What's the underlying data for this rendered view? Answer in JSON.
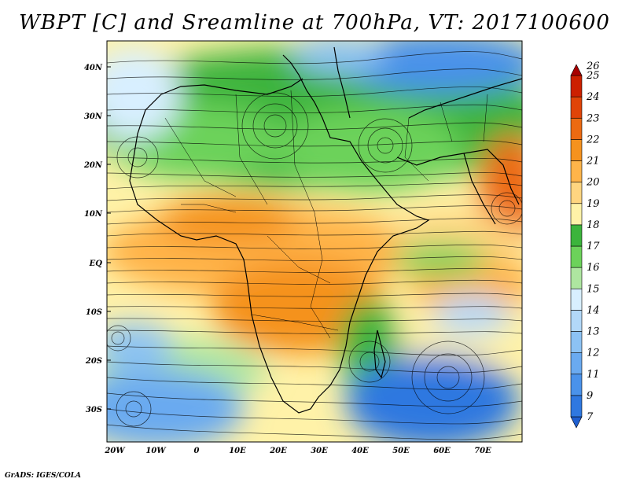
{
  "title": "WBPT [C] and Sreamline at 700hPa, VT: 2017100600",
  "credit": "GrADS: IGES/COLA",
  "lat_labels": [
    "40N",
    "30N",
    "20N",
    "10N",
    "EQ",
    "10S",
    "20S",
    "30S"
  ],
  "lon_labels": [
    "20W",
    "10W",
    "0",
    "10E",
    "20E",
    "30E",
    "40E",
    "50E",
    "60E",
    "70E"
  ],
  "colorbar": {
    "labels": [
      "7",
      "9",
      "11",
      "12",
      "13",
      "14",
      "15",
      "16",
      "17",
      "18",
      "19",
      "20",
      "21",
      "22",
      "23",
      "24",
      "25",
      "26"
    ],
    "colors": [
      "#1f5fd0",
      "#2f78e0",
      "#4a92ea",
      "#6aaaf0",
      "#8cc2f4",
      "#b2d8f8",
      "#d8efff",
      "#aee6a0",
      "#6cd25a",
      "#3cb43c",
      "#fff2a8",
      "#ffd580",
      "#ffb44a",
      "#f5921e",
      "#ec6a12",
      "#e04408",
      "#cc2000",
      "#a80000"
    ]
  }
}
